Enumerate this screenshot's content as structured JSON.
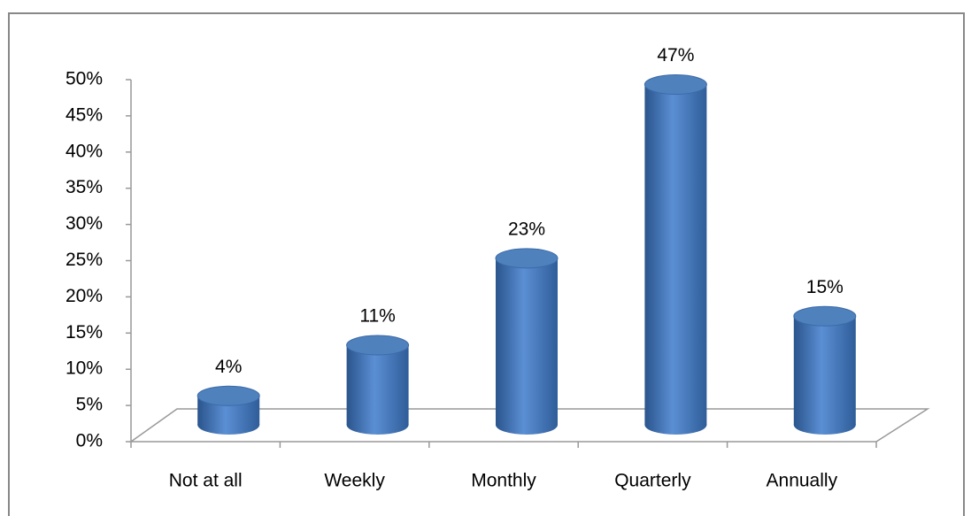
{
  "chart_data": {
    "type": "bar",
    "categories": [
      "Not at all",
      "Weekly",
      "Monthly",
      "Quarterly",
      "Annually"
    ],
    "values": [
      4,
      11,
      23,
      47,
      15
    ],
    "value_labels": [
      "4%",
      "11%",
      "23%",
      "47%",
      "15%"
    ],
    "color": "#4f81bd",
    "ylim": [
      0,
      50
    ],
    "yticks": [
      {
        "value": 0,
        "label": "0%"
      },
      {
        "value": 5,
        "label": "5%"
      },
      {
        "value": 10,
        "label": "10%"
      },
      {
        "value": 15,
        "label": "15%"
      },
      {
        "value": 20,
        "label": "20%"
      },
      {
        "value": 25,
        "label": "25%"
      },
      {
        "value": 30,
        "label": "30%"
      },
      {
        "value": 35,
        "label": "35%"
      },
      {
        "value": 40,
        "label": "40%"
      },
      {
        "value": 45,
        "label": "45%"
      },
      {
        "value": 50,
        "label": "50%"
      }
    ],
    "grid": false
  }
}
